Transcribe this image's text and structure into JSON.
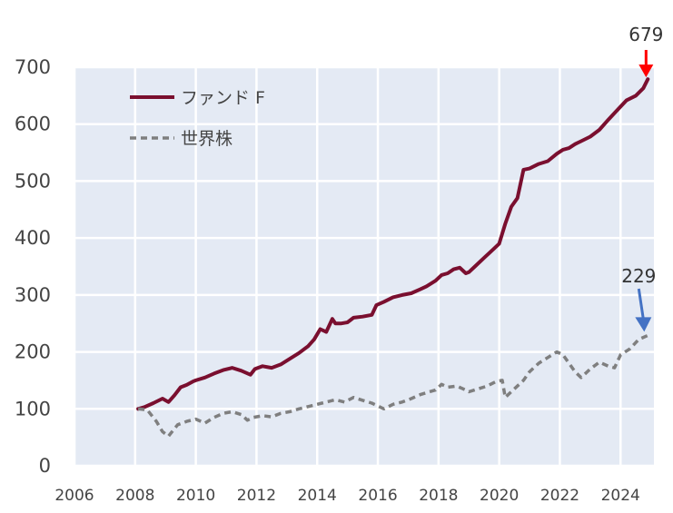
{
  "chart_data": {
    "type": "line",
    "title": "",
    "xlabel": "",
    "ylabel": "",
    "xlim": [
      2006,
      2025.1
    ],
    "ylim": [
      0,
      700
    ],
    "x_ticks": [
      "2006",
      "2008",
      "2010",
      "2012",
      "2014",
      "2016",
      "2018",
      "2020",
      "2022",
      "2024"
    ],
    "y_ticks": [
      "0",
      "100",
      "200",
      "300",
      "400",
      "500",
      "600",
      "700"
    ],
    "grid": true,
    "legend_position": "top-left",
    "series": [
      {
        "name": "ファンド F",
        "color": "#7a0f2f",
        "style": "solid",
        "x": [
          2008.1,
          2008.3,
          2008.6,
          2008.9,
          2009.1,
          2009.3,
          2009.5,
          2009.7,
          2009.9,
          2010.0,
          2010.3,
          2010.6,
          2010.9,
          2011.2,
          2011.5,
          2011.8,
          2011.95,
          2012.2,
          2012.5,
          2012.8,
          2013.1,
          2013.4,
          2013.7,
          2013.9,
          2014.1,
          2014.3,
          2014.5,
          2014.6,
          2014.8,
          2015.0,
          2015.2,
          2015.5,
          2015.8,
          2015.95,
          2016.2,
          2016.5,
          2016.8,
          2017.1,
          2017.4,
          2017.6,
          2017.9,
          2018.1,
          2018.3,
          2018.5,
          2018.7,
          2018.9,
          2019.0,
          2019.2,
          2019.5,
          2019.8,
          2020.0,
          2020.2,
          2020.4,
          2020.6,
          2020.8,
          2021.0,
          2021.3,
          2021.6,
          2021.9,
          2022.1,
          2022.3,
          2022.5,
          2022.7,
          2023.0,
          2023.3,
          2023.6,
          2023.9,
          2024.2,
          2024.5,
          2024.75,
          2024.9
        ],
        "values": [
          100,
          103,
          110,
          118,
          112,
          124,
          138,
          142,
          148,
          150,
          155,
          162,
          168,
          172,
          167,
          160,
          170,
          175,
          172,
          178,
          188,
          198,
          210,
          222,
          240,
          235,
          258,
          250,
          250,
          252,
          260,
          262,
          265,
          282,
          288,
          296,
          300,
          303,
          310,
          315,
          325,
          335,
          338,
          345,
          348,
          338,
          340,
          350,
          365,
          380,
          390,
          425,
          455,
          470,
          520,
          522,
          530,
          535,
          548,
          555,
          558,
          565,
          570,
          578,
          590,
          608,
          625,
          642,
          650,
          663,
          679
        ]
      },
      {
        "name": "世界株",
        "color": "#7f7f7f",
        "style": "dashed",
        "x": [
          2008.1,
          2008.4,
          2008.7,
          2008.9,
          2009.1,
          2009.4,
          2009.7,
          2010.0,
          2010.3,
          2010.6,
          2010.9,
          2011.2,
          2011.5,
          2011.7,
          2011.9,
          2012.2,
          2012.5,
          2012.8,
          2013.1,
          2013.4,
          2013.7,
          2014.0,
          2014.3,
          2014.6,
          2014.9,
          2015.2,
          2015.5,
          2015.8,
          2016.0,
          2016.2,
          2016.5,
          2016.8,
          2017.1,
          2017.4,
          2017.7,
          2017.9,
          2018.1,
          2018.3,
          2018.6,
          2018.9,
          2019.0,
          2019.3,
          2019.6,
          2019.9,
          2020.1,
          2020.2,
          2020.5,
          2020.8,
          2021.0,
          2021.3,
          2021.6,
          2021.9,
          2022.1,
          2022.3,
          2022.5,
          2022.7,
          2023.0,
          2023.3,
          2023.6,
          2023.8,
          2024.0,
          2024.3,
          2024.6,
          2024.9
        ],
        "values": [
          100,
          98,
          78,
          60,
          52,
          72,
          78,
          82,
          75,
          85,
          92,
          95,
          90,
          80,
          85,
          88,
          86,
          92,
          95,
          100,
          104,
          108,
          112,
          116,
          112,
          120,
          115,
          110,
          105,
          100,
          108,
          112,
          118,
          125,
          130,
          133,
          143,
          138,
          140,
          133,
          130,
          135,
          140,
          148,
          150,
          120,
          135,
          150,
          165,
          180,
          190,
          200,
          195,
          180,
          165,
          155,
          170,
          182,
          175,
          172,
          195,
          205,
          222,
          229
        ]
      }
    ],
    "annotations": [
      {
        "text": "679",
        "x": 2024.9,
        "y": 679,
        "color": "#ff0000"
      },
      {
        "text": "229",
        "x": 2024.9,
        "y": 229,
        "color": "#4472c4"
      }
    ]
  }
}
